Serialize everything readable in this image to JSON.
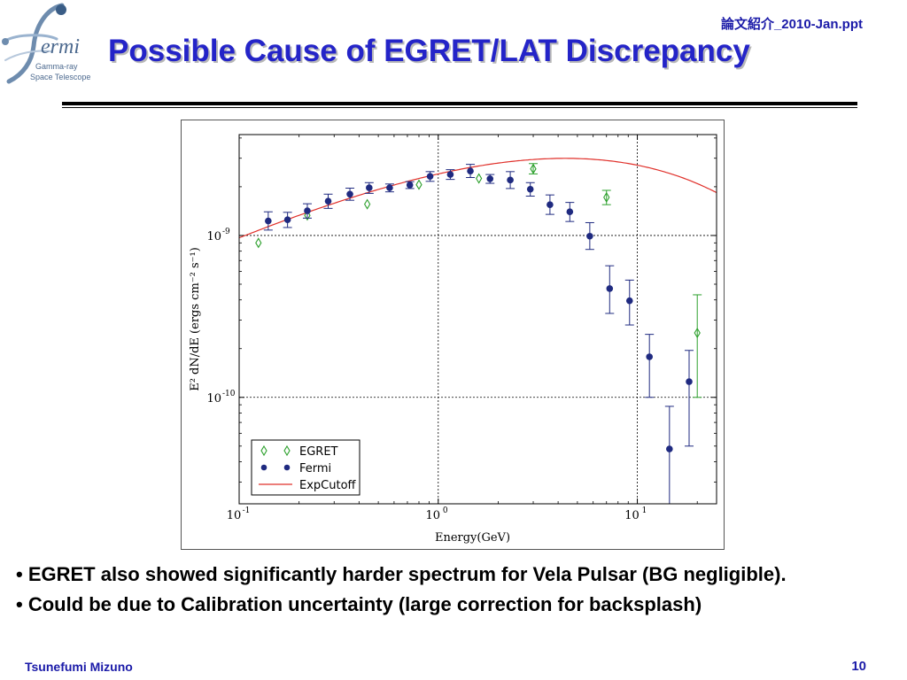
{
  "header": {
    "note": "論文紹介_2010-Jan.ppt",
    "title": "Possible Cause of EGRET/LAT Discrepancy"
  },
  "logo": {
    "name": "fermi-logo",
    "word": "ermi",
    "line1": "Gamma-ray",
    "line2": "Space Telescope"
  },
  "chart_data": {
    "type": "scatter",
    "xlabel": "Energy(GeV)",
    "ylabel": "E² dN/dE (ergs cm⁻² s⁻¹)",
    "xscale": "log",
    "yscale": "log",
    "xlim": [
      0.1,
      25
    ],
    "ylim": [
      2.2e-11,
      4.2e-09
    ],
    "x_ticks": [
      {
        "value": 0.1,
        "base": "10",
        "exp": "-1"
      },
      {
        "value": 1,
        "base": "10",
        "exp": "0"
      },
      {
        "value": 10,
        "base": "10",
        "exp": "1"
      }
    ],
    "y_ticks": [
      {
        "value": 1e-10,
        "base": "10",
        "exp": "-10"
      },
      {
        "value": 1e-09,
        "base": "10",
        "exp": "-9"
      }
    ],
    "grid": true,
    "legend_position": "lower-left",
    "series": [
      {
        "name": "EGRET",
        "marker": "diamond-open",
        "color": "#2ca02c",
        "points": [
          {
            "x": 0.125,
            "y": 9e-10
          },
          {
            "x": 0.22,
            "y": 1.33e-09
          },
          {
            "x": 0.44,
            "y": 1.56e-09
          },
          {
            "x": 0.8,
            "y": 2.06e-09
          },
          {
            "x": 1.6,
            "y": 2.25e-09
          },
          {
            "x": 3.0,
            "y": 2.58e-09,
            "ylo": 2.4e-09,
            "yhi": 2.78e-09
          },
          {
            "x": 7.0,
            "y": 1.72e-09,
            "ylo": 1.55e-09,
            "yhi": 1.9e-09
          },
          {
            "x": 20.0,
            "y": 2.5e-10,
            "ylo": 1e-10,
            "yhi": 4.3e-10
          }
        ]
      },
      {
        "name": "Fermi",
        "marker": "circle",
        "color": "#1f2a80",
        "points": [
          {
            "x": 0.14,
            "y": 1.23e-09,
            "ylo": 1.08e-09,
            "yhi": 1.4e-09
          },
          {
            "x": 0.175,
            "y": 1.25e-09,
            "ylo": 1.12e-09,
            "yhi": 1.39e-09
          },
          {
            "x": 0.22,
            "y": 1.42e-09,
            "ylo": 1.28e-09,
            "yhi": 1.57e-09
          },
          {
            "x": 0.28,
            "y": 1.63e-09,
            "ylo": 1.47e-09,
            "yhi": 1.8e-09
          },
          {
            "x": 0.36,
            "y": 1.8e-09,
            "ylo": 1.65e-09,
            "yhi": 1.96e-09
          },
          {
            "x": 0.45,
            "y": 1.97e-09,
            "ylo": 1.82e-09,
            "yhi": 2.12e-09
          },
          {
            "x": 0.57,
            "y": 1.97e-09,
            "ylo": 1.86e-09,
            "yhi": 2.08e-09
          },
          {
            "x": 0.72,
            "y": 2.05e-09,
            "ylo": 1.95e-09,
            "yhi": 2.15e-09
          },
          {
            "x": 0.91,
            "y": 2.32e-09,
            "ylo": 2.16e-09,
            "yhi": 2.48e-09
          },
          {
            "x": 1.15,
            "y": 2.38e-09,
            "ylo": 2.22e-09,
            "yhi": 2.55e-09
          },
          {
            "x": 1.45,
            "y": 2.5e-09,
            "ylo": 2.28e-09,
            "yhi": 2.75e-09
          },
          {
            "x": 1.82,
            "y": 2.24e-09,
            "ylo": 2.1e-09,
            "yhi": 2.38e-09
          },
          {
            "x": 2.3,
            "y": 2.2e-09,
            "ylo": 1.95e-09,
            "yhi": 2.48e-09
          },
          {
            "x": 2.9,
            "y": 1.93e-09,
            "ylo": 1.75e-09,
            "yhi": 2.12e-09
          },
          {
            "x": 3.64,
            "y": 1.55e-09,
            "ylo": 1.35e-09,
            "yhi": 1.78e-09
          },
          {
            "x": 4.58,
            "y": 1.4e-09,
            "ylo": 1.22e-09,
            "yhi": 1.6e-09
          },
          {
            "x": 5.77,
            "y": 9.9e-10,
            "ylo": 8.2e-10,
            "yhi": 1.2e-09
          },
          {
            "x": 7.26,
            "y": 4.7e-10,
            "ylo": 3.3e-10,
            "yhi": 6.5e-10
          },
          {
            "x": 9.14,
            "y": 3.95e-10,
            "ylo": 2.8e-10,
            "yhi": 5.3e-10
          },
          {
            "x": 11.5,
            "y": 1.78e-10,
            "ylo": 1e-10,
            "yhi": 2.45e-10
          },
          {
            "x": 14.5,
            "y": 4.8e-11,
            "ylo": 1.5e-11,
            "yhi": 8.8e-11
          },
          {
            "x": 18.2,
            "y": 1.25e-10,
            "ylo": 5e-11,
            "yhi": 1.95e-10
          }
        ]
      },
      {
        "name": "ExpCutoff",
        "line": "solid",
        "color": "#e0302a",
        "model": {
          "type": "exp_cutoff",
          "amplitude": 2.4e-09,
          "index": 1.38,
          "cutoff_gev": 1.45,
          "cutoff_exponent": 0.4
        }
      }
    ]
  },
  "bullets": [
    "• EGRET also showed significantly harder spectrum for Vela Pulsar (BG negligible).",
    "• Could be due to Calibration uncertainty (large correction for backsplash)"
  ],
  "footer": {
    "author": "Tsunefumi Mizuno",
    "page": "10"
  }
}
